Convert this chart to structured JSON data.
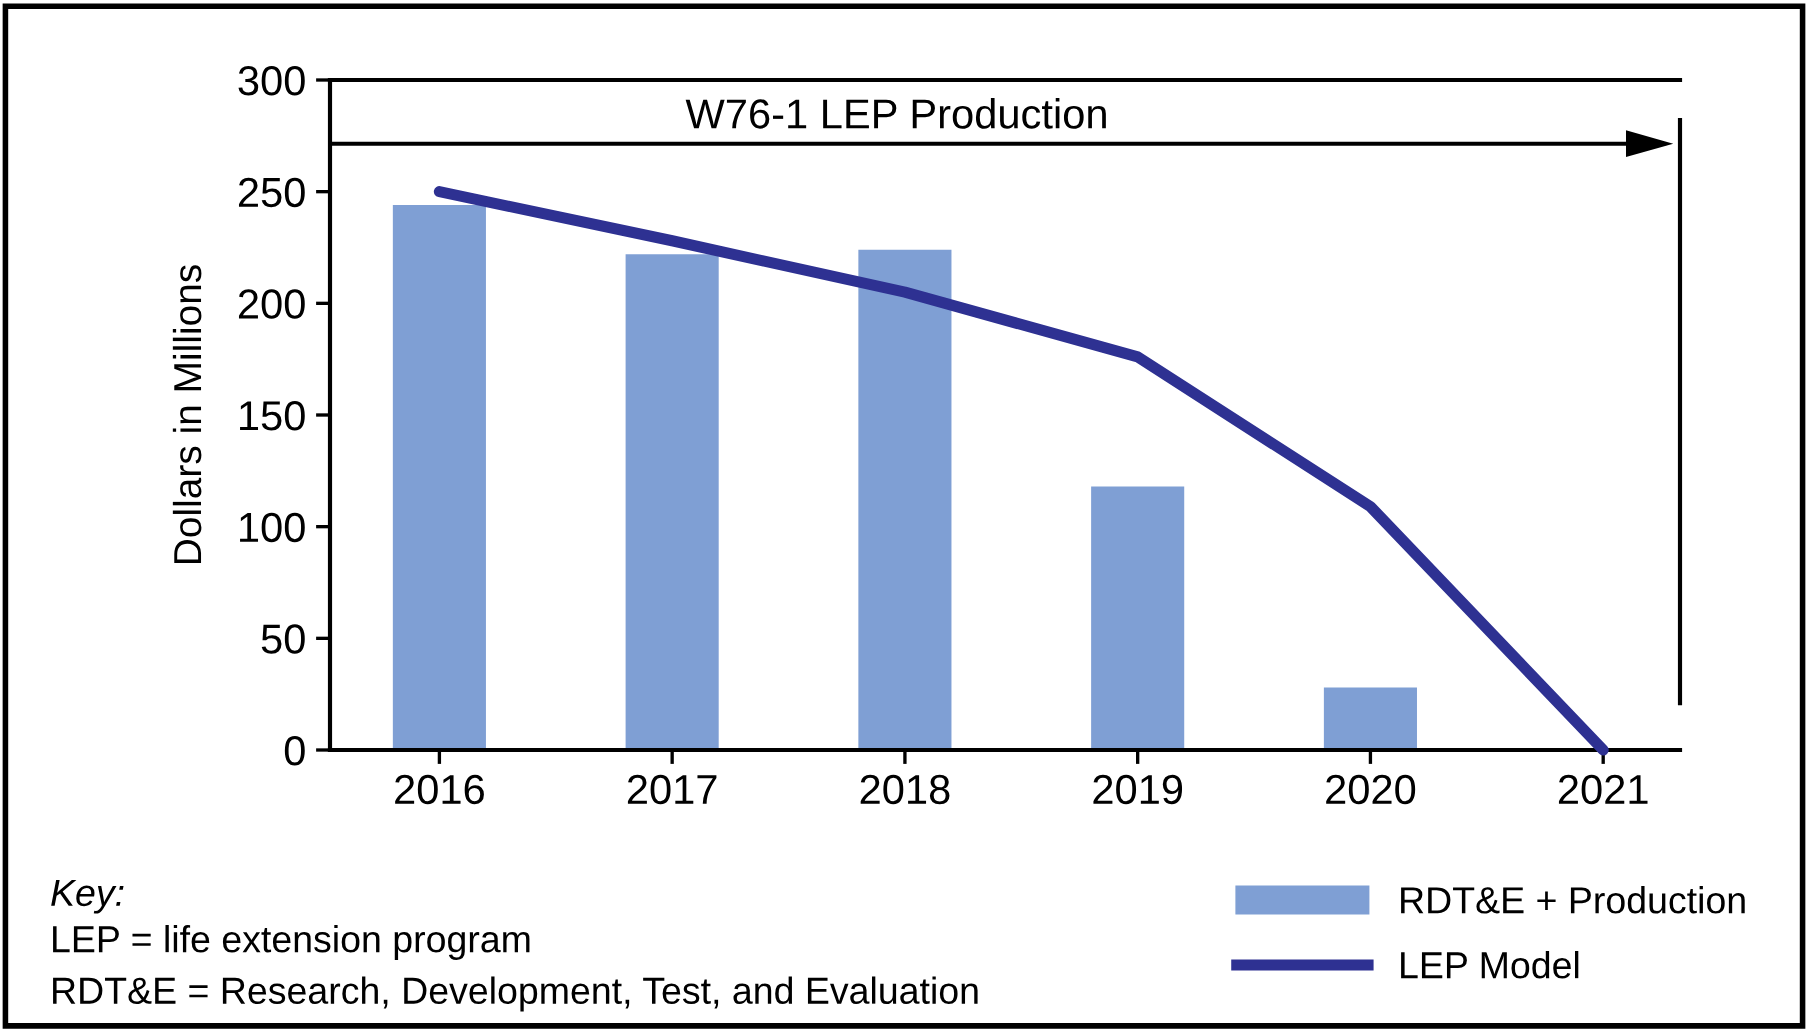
{
  "chart_data": {
    "type": "bar",
    "ylabel": "Dollars in Millions",
    "categories": [
      "2016",
      "2017",
      "2018",
      "2019",
      "2020",
      "2021"
    ],
    "series": [
      {
        "name": "RDT&E + Production",
        "color": "#7f9fd4",
        "values": [
          244,
          222,
          224,
          118,
          28,
          null
        ]
      },
      {
        "name": "LEP Model",
        "type": "line",
        "color": "#2e3192",
        "values": [
          250,
          228,
          205,
          176,
          109,
          0
        ]
      }
    ],
    "ylim": [
      0,
      300
    ],
    "yticks": [
      0,
      50,
      100,
      150,
      200,
      250,
      300
    ],
    "grid": false,
    "legend": "bottom right",
    "marker": "none",
    "line_style": "solid",
    "annotations": [
      "W76-1 LEP Production",
      "Key:",
      "LEP = life extension program",
      "RDT&E = Research, Development, Test, and Evaluation"
    ]
  }
}
